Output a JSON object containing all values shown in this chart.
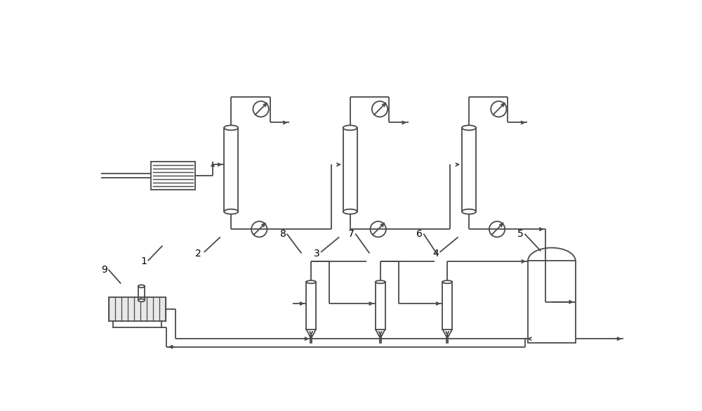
{
  "bg_color": "#ffffff",
  "line_color": "#4a4a4a",
  "line_width": 1.3,
  "fig_width": 10.0,
  "fig_height": 5.85
}
